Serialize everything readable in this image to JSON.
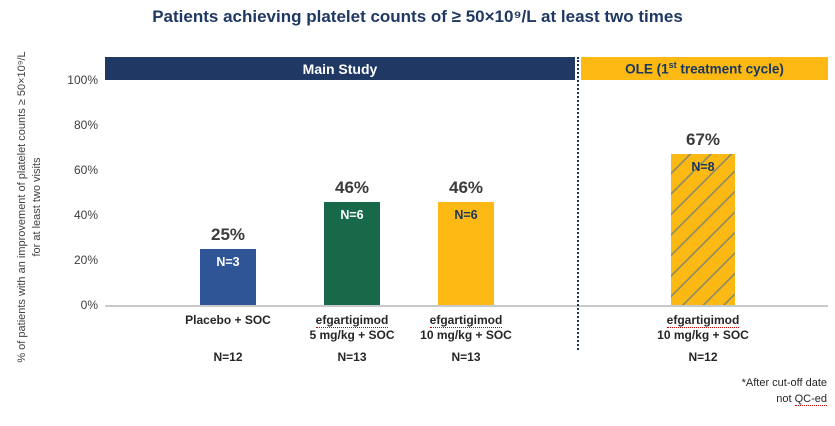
{
  "title": "Patients achieving platelet counts of ≥ 50×10⁹/L at least two times",
  "bands": {
    "main": "Main Study",
    "ole_prefix": "OLE (1",
    "ole_sup": "st",
    "ole_suffix": " treatment cycle)"
  },
  "footnote": {
    "line1": "*After cut-off  date",
    "line2_prefix": "not ",
    "line2_flagged": "QC-ed"
  },
  "chart_data": {
    "type": "bar",
    "title": "Patients achieving platelet counts of ≥ 50×10⁹/L at least two times",
    "ylabel": "% of patients with an improvement of platelet counts ≥ 50×10⁹/L for at least two visits",
    "ylim": [
      0,
      100
    ],
    "ytick_labels": [
      "100%",
      "80%",
      "60%",
      "40%",
      "20%",
      "0%"
    ],
    "groups": [
      "Main Study",
      "Main Study",
      "Main Study",
      "OLE (1st treatment cycle)"
    ],
    "categories": [
      "Placebo + SOC",
      "efgartigimod 5 mg/kg + SOC",
      "efgartigimod 10 mg/kg + SOC",
      "efgartigimod 10 mg/kg + SOC (OLE)"
    ],
    "values": [
      25,
      46,
      46,
      67
    ],
    "value_labels": [
      "25%",
      "46%",
      "46%",
      "67%"
    ],
    "bar_n_labels": [
      "N=3",
      "N=6",
      "N=6",
      "N=8"
    ],
    "group_n_labels": [
      "N=12",
      "N=13",
      "N=13",
      "N=12"
    ],
    "colors": [
      "#2f5597",
      "#17694a",
      "#fdb913",
      "#fdb913"
    ],
    "n_label_colors": [
      "#ffffff",
      "#ffffff",
      "#17365d",
      "#17365d"
    ],
    "hatched": [
      false,
      false,
      false,
      true
    ],
    "x_labels": [
      {
        "line1": "Placebo + SOC",
        "line2": "",
        "n": "N=12"
      },
      {
        "line1": "efgartigimod",
        "line2": "5 mg/kg + SOC",
        "n": "N=13"
      },
      {
        "line1": "efgartigimod",
        "line2": "10 mg/kg  + SOC",
        "n": "N=13"
      },
      {
        "line1": "efgartigimod",
        "line2": "10 mg/kg + SOC",
        "n": "N=12"
      }
    ]
  },
  "colors": {
    "title_navy": "#1f3864",
    "band_main_bg": "#1f3864",
    "band_ole_bg": "#fdb913",
    "bar_blue": "#2f5597",
    "bar_green": "#17694a",
    "bar_gold": "#fdb913",
    "separator": "#17365d"
  }
}
